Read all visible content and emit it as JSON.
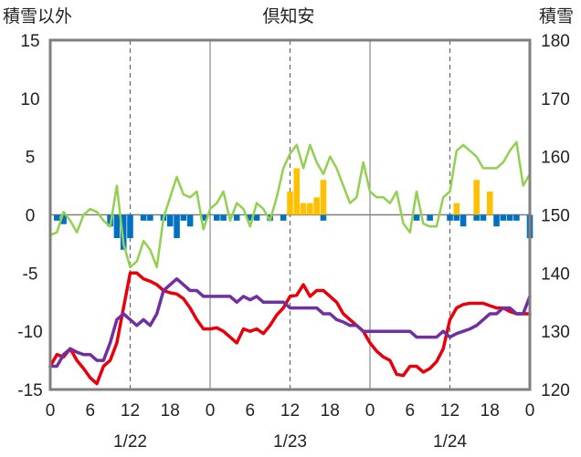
{
  "chart_data": {
    "type": "bar+line",
    "title": "倶知安",
    "left_axis_label": "積雪以外",
    "right_axis_label": "積雪",
    "ylim_left": [
      -15,
      15
    ],
    "ylim_right": [
      120,
      180
    ],
    "y_ticks_left": [
      "15",
      "10",
      "5",
      "0",
      "-5",
      "-10",
      "-15"
    ],
    "y_ticks_right": [
      "180",
      "170",
      "160",
      "150",
      "140",
      "130",
      "120"
    ],
    "x_hours_range": [
      0,
      72
    ],
    "x_tick_labels": [
      "0",
      "6",
      "12",
      "18",
      "0",
      "6",
      "12",
      "18",
      "0",
      "6",
      "12",
      "18",
      "0"
    ],
    "date_labels": [
      "1/22",
      "1/23",
      "1/24"
    ],
    "grid": "dashed vertical at 12h, solid vertical at day boundaries",
    "colors": {
      "temperature": "#e8000b",
      "humidity_like": "#7030a0",
      "snow_depth": "#92d050",
      "positive_bar": "#ffc000",
      "negative_bar": "#0070c0"
    },
    "bars": [
      {
        "h": 1,
        "v": -0.5
      },
      {
        "h": 2,
        "v": -0.8
      },
      {
        "h": 9,
        "v": -1.0
      },
      {
        "h": 10,
        "v": -2.0
      },
      {
        "h": 11,
        "v": -3.0
      },
      {
        "h": 12,
        "v": -2.0
      },
      {
        "h": 14,
        "v": -0.5
      },
      {
        "h": 15,
        "v": -0.5
      },
      {
        "h": 17,
        "v": -0.5
      },
      {
        "h": 18,
        "v": -1.0
      },
      {
        "h": 19,
        "v": -2.0
      },
      {
        "h": 20,
        "v": -0.5
      },
      {
        "h": 21,
        "v": -1.0
      },
      {
        "h": 23,
        "v": -0.5
      },
      {
        "h": 25,
        "v": -0.5
      },
      {
        "h": 26,
        "v": -0.5
      },
      {
        "h": 28,
        "v": -0.5
      },
      {
        "h": 30,
        "v": -0.5
      },
      {
        "h": 31,
        "v": -0.5
      },
      {
        "h": 33,
        "v": -0.5
      },
      {
        "h": 35,
        "v": -0.5
      },
      {
        "h": 36,
        "v": 2.0
      },
      {
        "h": 37,
        "v": 4.0
      },
      {
        "h": 38,
        "v": 1.0
      },
      {
        "h": 39,
        "v": 1.0
      },
      {
        "h": 40,
        "v": 1.5
      },
      {
        "h": 41,
        "v": 3.0
      },
      {
        "h": 41,
        "v": -0.5
      },
      {
        "h": 55,
        "v": -0.5
      },
      {
        "h": 57,
        "v": -0.5
      },
      {
        "h": 60,
        "v": -0.5
      },
      {
        "h": 61,
        "v": 1.0
      },
      {
        "h": 61,
        "v": -0.5
      },
      {
        "h": 62,
        "v": -1.0
      },
      {
        "h": 64,
        "v": 3.0
      },
      {
        "h": 64,
        "v": -0.5
      },
      {
        "h": 65,
        "v": -0.5
      },
      {
        "h": 66,
        "v": 2.0
      },
      {
        "h": 67,
        "v": -1.0
      },
      {
        "h": 68,
        "v": -0.5
      },
      {
        "h": 69,
        "v": -0.5
      },
      {
        "h": 70,
        "v": -0.5
      },
      {
        "h": 72,
        "v": -2.0
      }
    ],
    "series": [
      {
        "axis": "left",
        "color": "#e8000b",
        "points": [
          [
            0,
            -13
          ],
          [
            1,
            -12
          ],
          [
            2,
            -12.2
          ],
          [
            3,
            -11.5
          ],
          [
            4,
            -12.5
          ],
          [
            5,
            -13.2
          ],
          [
            6,
            -14
          ],
          [
            7,
            -14.5
          ],
          [
            8,
            -13
          ],
          [
            9,
            -12.5
          ],
          [
            10,
            -11
          ],
          [
            11,
            -8
          ],
          [
            12,
            -5
          ],
          [
            13,
            -5
          ],
          [
            14,
            -5.5
          ],
          [
            15,
            -5.7
          ],
          [
            16,
            -6
          ],
          [
            17,
            -6.5
          ],
          [
            18,
            -6.7
          ],
          [
            19,
            -6.8
          ],
          [
            20,
            -7.2
          ],
          [
            21,
            -8
          ],
          [
            22,
            -9
          ],
          [
            23,
            -9.8
          ],
          [
            24,
            -9.8
          ],
          [
            25,
            -9.7
          ],
          [
            26,
            -10
          ],
          [
            27,
            -10.5
          ],
          [
            28,
            -11
          ],
          [
            29,
            -9.8
          ],
          [
            30,
            -10
          ],
          [
            31,
            -9.8
          ],
          [
            32,
            -10.2
          ],
          [
            33,
            -9.5
          ],
          [
            34,
            -8.6
          ],
          [
            35,
            -8
          ],
          [
            36,
            -7
          ],
          [
            37,
            -6.9
          ],
          [
            38,
            -6
          ],
          [
            39,
            -7
          ],
          [
            40,
            -6.5
          ],
          [
            41,
            -6.5
          ],
          [
            42,
            -7
          ],
          [
            43,
            -7.5
          ],
          [
            44,
            -8.5
          ],
          [
            45,
            -9
          ],
          [
            46,
            -9.5
          ],
          [
            47,
            -10
          ],
          [
            48,
            -11
          ],
          [
            49,
            -11.7
          ],
          [
            50,
            -12.2
          ],
          [
            51,
            -12.5
          ],
          [
            52,
            -13.7
          ],
          [
            53,
            -13.8
          ],
          [
            54,
            -13
          ],
          [
            55,
            -13
          ],
          [
            56,
            -13.5
          ],
          [
            57,
            -13.2
          ],
          [
            58,
            -12.6
          ],
          [
            59,
            -11.5
          ],
          [
            60,
            -9
          ],
          [
            61,
            -8
          ],
          [
            62,
            -7.7
          ],
          [
            63,
            -7.6
          ],
          [
            64,
            -7.6
          ],
          [
            65,
            -7.6
          ],
          [
            66,
            -7.8
          ],
          [
            67,
            -8
          ],
          [
            68,
            -8
          ],
          [
            69,
            -8.3
          ],
          [
            70,
            -8.5
          ],
          [
            71,
            -8.5
          ],
          [
            72,
            -8.5
          ]
        ]
      },
      {
        "axis": "left",
        "color": "#7030a0",
        "points": [
          [
            0,
            -13
          ],
          [
            1,
            -13
          ],
          [
            2,
            -12
          ],
          [
            3,
            -11.5
          ],
          [
            4,
            -11.8
          ],
          [
            5,
            -12
          ],
          [
            6,
            -12
          ],
          [
            7,
            -12.5
          ],
          [
            8,
            -12.5
          ],
          [
            9,
            -11
          ],
          [
            10,
            -9
          ],
          [
            11,
            -8.5
          ],
          [
            12,
            -9
          ],
          [
            13,
            -9.5
          ],
          [
            14,
            -9
          ],
          [
            15,
            -9.5
          ],
          [
            16,
            -8.5
          ],
          [
            17,
            -6.5
          ],
          [
            18,
            -6
          ],
          [
            19,
            -5.5
          ],
          [
            20,
            -6
          ],
          [
            21,
            -6.5
          ],
          [
            22,
            -6.5
          ],
          [
            23,
            -7
          ],
          [
            24,
            -7
          ],
          [
            25,
            -7
          ],
          [
            26,
            -7
          ],
          [
            27,
            -7
          ],
          [
            28,
            -7.5
          ],
          [
            29,
            -7
          ],
          [
            30,
            -7.3
          ],
          [
            31,
            -7
          ],
          [
            32,
            -7.5
          ],
          [
            33,
            -7.5
          ],
          [
            34,
            -7.5
          ],
          [
            35,
            -7.5
          ],
          [
            36,
            -8
          ],
          [
            37,
            -8
          ],
          [
            38,
            -8
          ],
          [
            39,
            -8
          ],
          [
            40,
            -8
          ],
          [
            41,
            -8.5
          ],
          [
            42,
            -8.5
          ],
          [
            43,
            -9
          ],
          [
            44,
            -9.2
          ],
          [
            45,
            -9.5
          ],
          [
            46,
            -9.5
          ],
          [
            47,
            -10
          ],
          [
            48,
            -10
          ],
          [
            49,
            -10
          ],
          [
            50,
            -10
          ],
          [
            51,
            -10
          ],
          [
            52,
            -10
          ],
          [
            53,
            -10
          ],
          [
            54,
            -10
          ],
          [
            55,
            -10.5
          ],
          [
            56,
            -10.5
          ],
          [
            57,
            -10.5
          ],
          [
            58,
            -10.5
          ],
          [
            59,
            -10
          ],
          [
            60,
            -10.5
          ],
          [
            61,
            -10.2
          ],
          [
            62,
            -10
          ],
          [
            63,
            -9.8
          ],
          [
            64,
            -9.5
          ],
          [
            65,
            -9
          ],
          [
            66,
            -8.5
          ],
          [
            67,
            -8.5
          ],
          [
            68,
            -8
          ],
          [
            69,
            -8
          ],
          [
            70,
            -8.5
          ],
          [
            71,
            -8.5
          ],
          [
            72,
            -7
          ]
        ]
      },
      {
        "axis": "right",
        "color": "#92d050",
        "points": [
          [
            0,
            146.5
          ],
          [
            1,
            147
          ],
          [
            2,
            150.5
          ],
          [
            3,
            149
          ],
          [
            4,
            147
          ],
          [
            5,
            150
          ],
          [
            6,
            151
          ],
          [
            7,
            150.5
          ],
          [
            8,
            149
          ],
          [
            9,
            148
          ],
          [
            10,
            155
          ],
          [
            11,
            145
          ],
          [
            12,
            141
          ],
          [
            13,
            142
          ],
          [
            14,
            145.5
          ],
          [
            15,
            144
          ],
          [
            16,
            141
          ],
          [
            17,
            149.5
          ],
          [
            18,
            153
          ],
          [
            19,
            156.5
          ],
          [
            20,
            153.5
          ],
          [
            21,
            153
          ],
          [
            22,
            154
          ],
          [
            23,
            147.5
          ],
          [
            24,
            151
          ],
          [
            25,
            152
          ],
          [
            26,
            154
          ],
          [
            27,
            149
          ],
          [
            28,
            152
          ],
          [
            29,
            151
          ],
          [
            30,
            148
          ],
          [
            31,
            152
          ],
          [
            32,
            151
          ],
          [
            33,
            149
          ],
          [
            34,
            153
          ],
          [
            35,
            158
          ],
          [
            36,
            160.5
          ],
          [
            37,
            162
          ],
          [
            38,
            158
          ],
          [
            39,
            162
          ],
          [
            40,
            159
          ],
          [
            41,
            157
          ],
          [
            42,
            160
          ],
          [
            43,
            158
          ],
          [
            44,
            155
          ],
          [
            45,
            152
          ],
          [
            46,
            153
          ],
          [
            47,
            159
          ],
          [
            48,
            154
          ],
          [
            49,
            153
          ],
          [
            50,
            153
          ],
          [
            51,
            152
          ],
          [
            52,
            154
          ],
          [
            53,
            148.5
          ],
          [
            54,
            147
          ],
          [
            55,
            154
          ],
          [
            56,
            148.5
          ],
          [
            57,
            148
          ],
          [
            58,
            148
          ],
          [
            59,
            153
          ],
          [
            60,
            154
          ],
          [
            61,
            161
          ],
          [
            62,
            162
          ],
          [
            63,
            161
          ],
          [
            64,
            160
          ],
          [
            65,
            158
          ],
          [
            66,
            158
          ],
          [
            67,
            158
          ],
          [
            68,
            159
          ],
          [
            69,
            161
          ],
          [
            70,
            162.5
          ],
          [
            71,
            155
          ],
          [
            72,
            157
          ]
        ]
      }
    ]
  }
}
